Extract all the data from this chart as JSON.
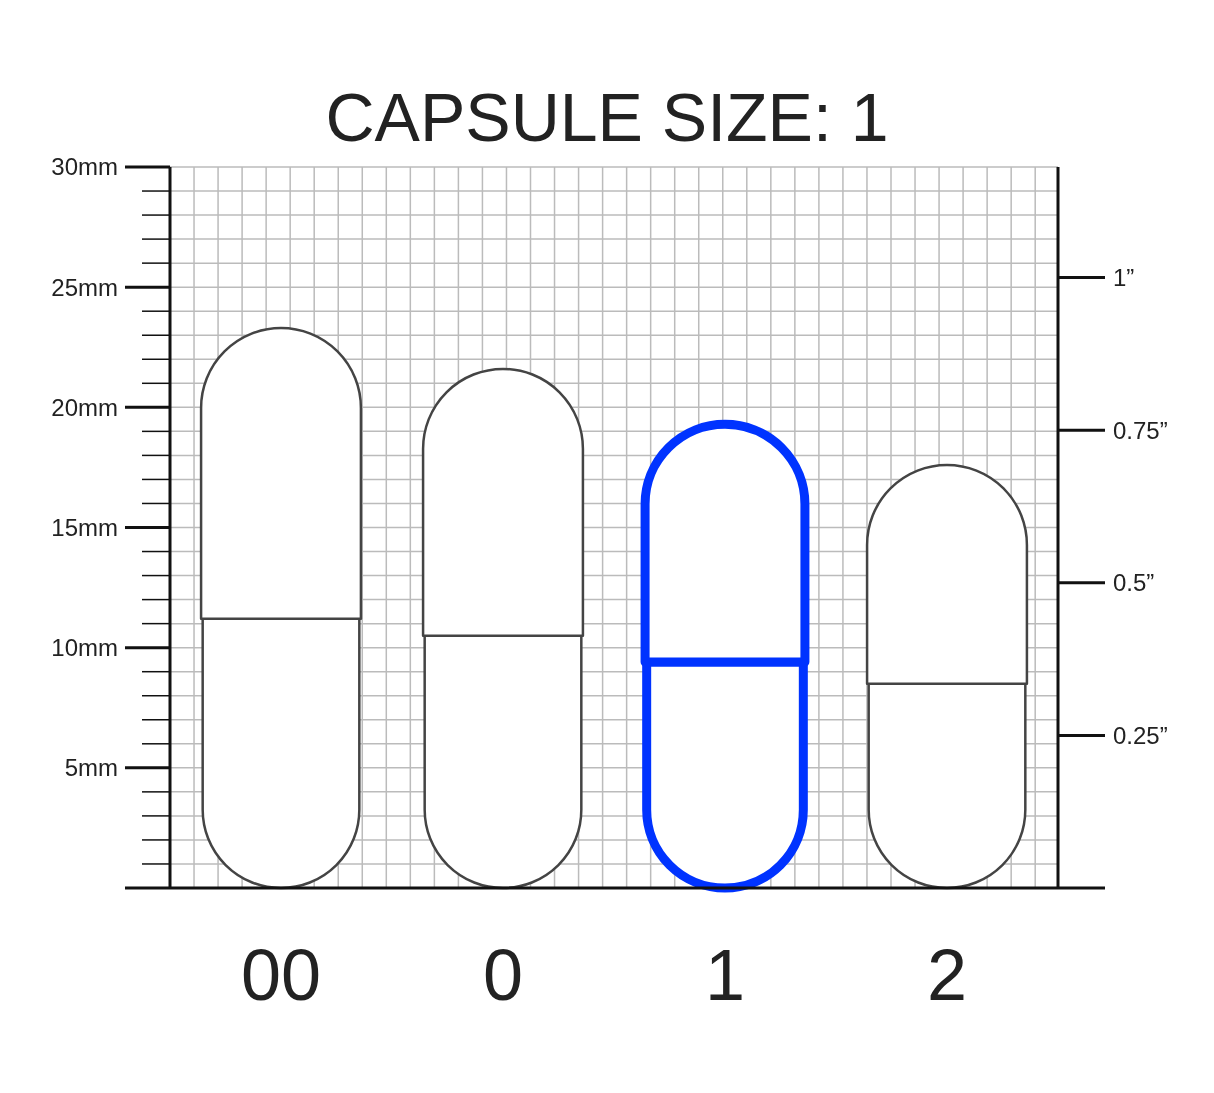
{
  "chart_data": {
    "type": "bar",
    "title": "CAPSULE SIZE: 1",
    "categories": [
      "00",
      "0",
      "1",
      "2"
    ],
    "stacked": true,
    "series": [
      {
        "colors": [
          "#444444",
          "#444444",
          "#0033ff",
          "#444444"
        ],
        "values": [
          11.2,
          10.5,
          9.4,
          8.5
        ]
      },
      {
        "colors": [
          "#444444",
          "#444444",
          "#0033ff",
          "#444444"
        ],
        "values": [
          12.1,
          11.1,
          9.9,
          9.1
        ]
      }
    ],
    "ylim": [
      0,
      30
    ],
    "yticks": [
      {
        "value": 1,
        "label": null
      },
      {
        "value": 2,
        "label": null
      },
      {
        "value": 3,
        "label": null
      },
      {
        "value": 4,
        "label": null
      },
      {
        "value": 5,
        "label": "5mm"
      },
      {
        "value": 6,
        "label": null
      },
      {
        "value": 7,
        "label": null
      },
      {
        "value": 8,
        "label": null
      },
      {
        "value": 9,
        "label": null
      },
      {
        "value": 10,
        "label": "10mm"
      },
      {
        "value": 11,
        "label": null
      },
      {
        "value": 12,
        "label": null
      },
      {
        "value": 13,
        "label": null
      },
      {
        "value": 14,
        "label": null
      },
      {
        "value": 15,
        "label": "15mm"
      },
      {
        "value": 16,
        "label": null
      },
      {
        "value": 17,
        "label": null
      },
      {
        "value": 18,
        "label": null
      },
      {
        "value": 19,
        "label": null
      },
      {
        "value": 20,
        "label": "20mm"
      },
      {
        "value": 21,
        "label": null
      },
      {
        "value": 22,
        "label": null
      },
      {
        "value": 23,
        "label": null
      },
      {
        "value": 24,
        "label": null
      },
      {
        "value": 25,
        "label": "25mm"
      },
      {
        "value": 26,
        "label": null
      },
      {
        "value": 27,
        "label": null
      },
      {
        "value": 28,
        "label": null
      },
      {
        "value": 29,
        "label": null
      },
      {
        "value": 30,
        "label": "30mm"
      }
    ],
    "y2lim": [
      0,
      1.1811
    ],
    "y2ticks": [
      {
        "value": 0.25,
        "label": "0.25”"
      },
      {
        "value": 0.5,
        "label": "0.5”"
      },
      {
        "value": 0.75,
        "label": "0.75”"
      },
      {
        "value": 1,
        "label": "1”"
      }
    ],
    "grid": true
  }
}
